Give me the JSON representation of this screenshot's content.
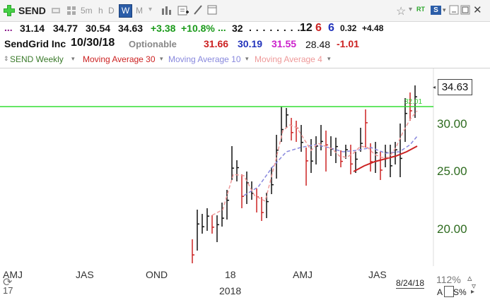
{
  "toolbar": {
    "symbol": "SEND",
    "intervals": [
      "5m",
      "h",
      "D",
      "W",
      "M"
    ],
    "active_interval": "W",
    "rt_label": "RT",
    "s_badge": "S"
  },
  "quote": {
    "prefix": "...",
    "open": "31.14",
    "high": "34.77",
    "low": "30.54",
    "last": "34.63",
    "change": "+3.38",
    "change_pct": "+10.8%",
    "dots": "...",
    "count": "32",
    "more": ". . . . . . . .",
    "v1": "12",
    "v2": "6",
    "v3": "6",
    "v4": "0.32",
    "v5": "+4.48"
  },
  "info": {
    "company": "SendGrid Inc",
    "date": "10/30/18",
    "optionable": "Optionable",
    "ma_a": "31.66",
    "ma_b": "30.19",
    "ma_c": "31.55",
    "ma_d": "28.48",
    "ma_e": "-1.01"
  },
  "legend": {
    "items": [
      "SEND Weekly",
      "Moving Average 30",
      "Moving Average 10",
      "Moving Average 4"
    ]
  },
  "colors": {
    "ma30": "#cc2222",
    "ma10": "#8888dd",
    "ma4": "#ee9999",
    "hline": "#33dd33",
    "axis_text": "#2e6b1f"
  },
  "chart_data": {
    "type": "bar",
    "price_label": "34.63",
    "hline_label": "32.01",
    "hline_value": 32.01,
    "y_ticks": [
      "30.00",
      "25.00",
      "20.00"
    ],
    "x_ticks": [
      "AMJ",
      "JAS",
      "OND",
      "18",
      "AMJ",
      "JAS"
    ],
    "x_sub_left": "17",
    "x_year": "2018",
    "date_label": "8/24/18"
  },
  "footer": {
    "zoom": "112%",
    "a_label": "A",
    "pct_label": "S%"
  }
}
